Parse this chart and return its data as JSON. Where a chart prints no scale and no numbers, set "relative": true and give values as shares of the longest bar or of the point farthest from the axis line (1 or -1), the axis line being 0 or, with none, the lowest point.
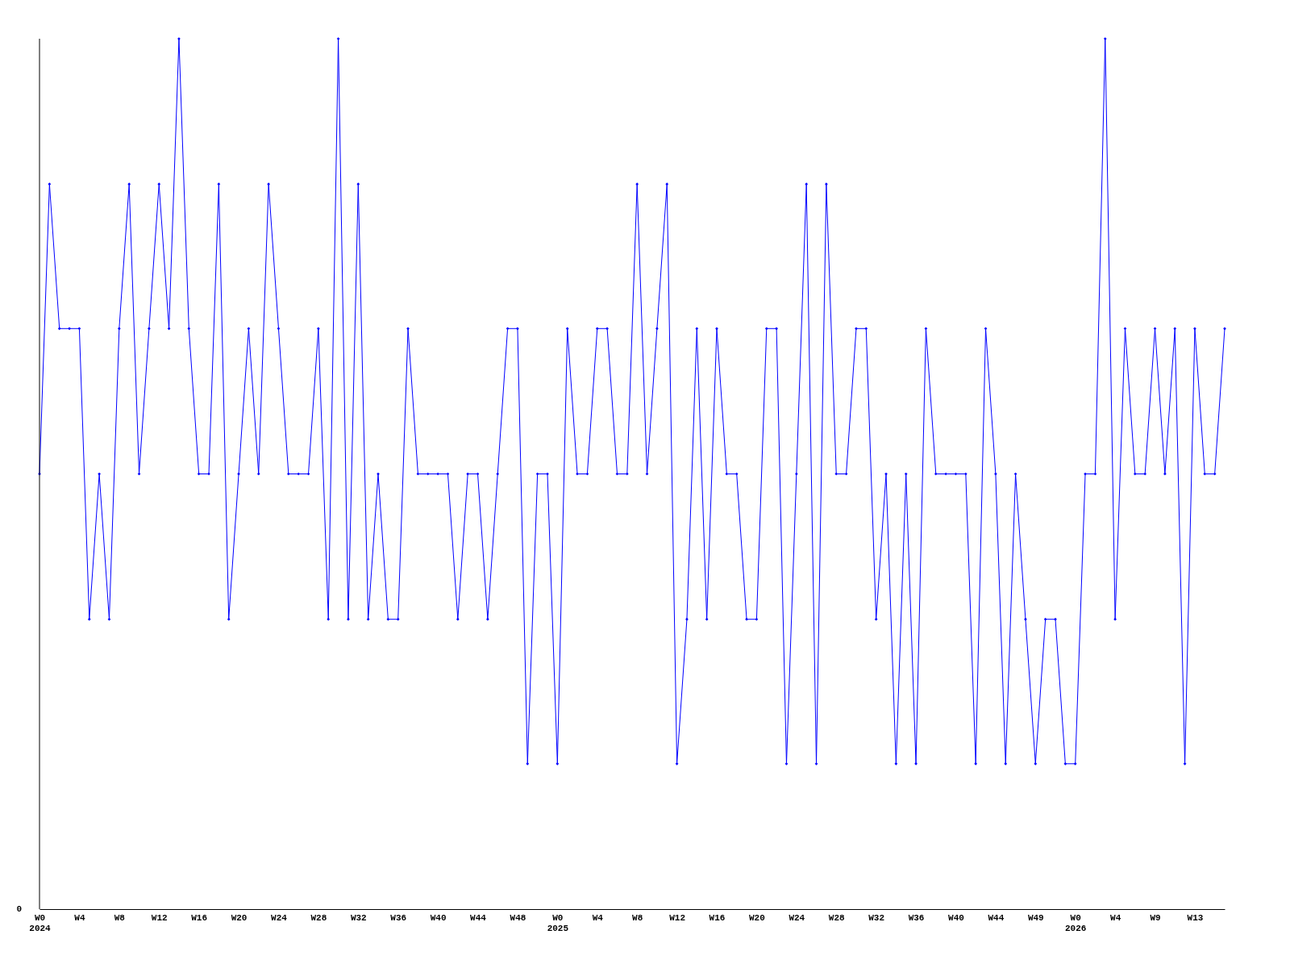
{
  "chart_data": {
    "type": "line",
    "relative": true,
    "marker": "diamond",
    "line_style": "solid",
    "grid": false,
    "categories": [
      "W0\n2024",
      null,
      null,
      null,
      "W4",
      null,
      null,
      null,
      "W8",
      null,
      null,
      null,
      "W12",
      null,
      null,
      null,
      "W16",
      null,
      null,
      null,
      "W20",
      null,
      null,
      null,
      "W24",
      null,
      null,
      null,
      "W28",
      null,
      null,
      null,
      "W32",
      null,
      null,
      null,
      "W36",
      null,
      null,
      null,
      "W40",
      null,
      null,
      null,
      "W44",
      null,
      null,
      null,
      "W48",
      null,
      null,
      null,
      "W0\n2025",
      null,
      null,
      null,
      "W4",
      null,
      null,
      null,
      "W8",
      null,
      null,
      null,
      "W12",
      null,
      null,
      null,
      "W16",
      null,
      null,
      null,
      "W20",
      null,
      null,
      null,
      "W24",
      null,
      null,
      null,
      "W28",
      null,
      null,
      null,
      "W32",
      null,
      null,
      null,
      "W36",
      null,
      null,
      null,
      "W40",
      null,
      null,
      null,
      "W44",
      null,
      null,
      null,
      "W49",
      null,
      null,
      null,
      "W0\n2026",
      null,
      null,
      null,
      "W4",
      null,
      null,
      null,
      "W9",
      null,
      null,
      null,
      "W13",
      null,
      null,
      null
    ],
    "series": [
      {
        "color": "#0000ff",
        "values": [
          0.5,
          0.833,
          0.667,
          0.667,
          0.667,
          0.333,
          0.5,
          0.333,
          0.667,
          0.833,
          0.5,
          0.667,
          0.833,
          0.667,
          1,
          0.667,
          0.5,
          0.5,
          0.833,
          0.333,
          0.5,
          0.667,
          0.5,
          0.833,
          0.667,
          0.5,
          0.5,
          0.5,
          0.667,
          0.333,
          1,
          0.333,
          0.833,
          0.333,
          0.5,
          0.333,
          0.333,
          0.667,
          0.5,
          0.5,
          0.5,
          0.5,
          0.333,
          0.5,
          0.5,
          0.333,
          0.5,
          0.667,
          0.667,
          0.167,
          0.5,
          0.5,
          0.167,
          0.667,
          0.5,
          0.5,
          0.667,
          0.667,
          0.5,
          0.5,
          0.833,
          0.5,
          0.667,
          0.833,
          0.167,
          0.333,
          0.667,
          0.333,
          0.667,
          0.5,
          0.5,
          0.333,
          0.333,
          0.667,
          0.667,
          0.167,
          0.5,
          0.833,
          0.167,
          0.833,
          0.5,
          0.5,
          0.667,
          0.667,
          0.333,
          0.5,
          0.167,
          0.5,
          0.167,
          0.667,
          0.5,
          0.5,
          0.5,
          0.5,
          0.167,
          0.667,
          0.5,
          0.167,
          0.5,
          0.333,
          0.167,
          0.333,
          0.333,
          0.167,
          0.167,
          0.5,
          0.5,
          1,
          0.333,
          0.667,
          0.5,
          0.5,
          0.667,
          0.5,
          0.667,
          0.167,
          0.667,
          0.5,
          0.5,
          0.667
        ]
      }
    ],
    "annotations": [
      "0"
    ]
  }
}
